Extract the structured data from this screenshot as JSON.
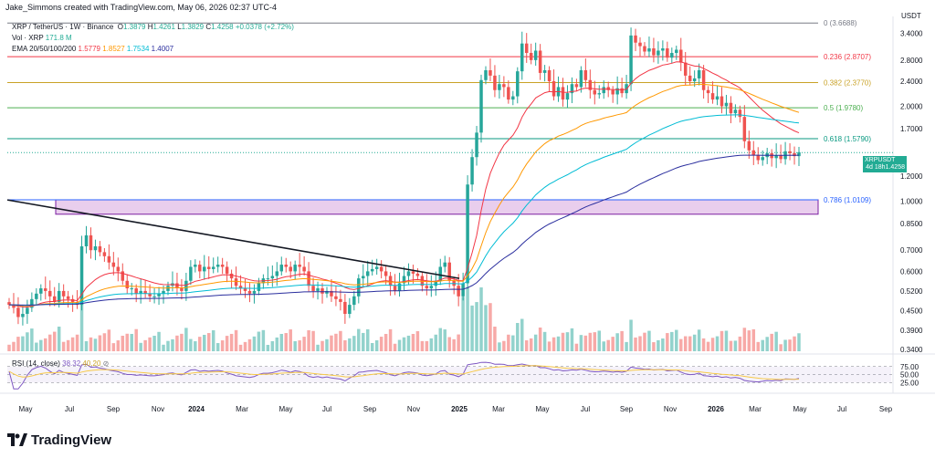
{
  "header": {
    "credit": "Jake_Simmons created with TradingView.com, May 06, 2026 02:37 UTC-4",
    "currency": "USDT"
  },
  "legend": {
    "symbol": "XRP / TetherUS · 1W · Binance",
    "o_label": "O",
    "o": "1.3879",
    "h_label": "H",
    "h": "1.4261",
    "l_label": "L",
    "l": "1.3829",
    "c_label": "C",
    "c": "1.4258",
    "change": "+0.0378 (+2.72%)",
    "vol_label": "Vol · XRP",
    "vol_value": "171.8 M",
    "ema_label": "EMA 20/50/100/200",
    "ema20": "1.5779",
    "ema50": "1.8527",
    "ema100": "1.7534",
    "ema200": "1.4007",
    "rsi_label": "RSI (14, close)",
    "rsi_value": "38.32",
    "rsi_ma": "40.20"
  },
  "colors": {
    "up": "#26a69a",
    "down": "#ef5350",
    "ema20": "#f23645",
    "ema50": "#ff9800",
    "ema100": "#00bcd4",
    "ema200": "#2a2e9e",
    "rsi": "#7e57c2",
    "rsi_ma": "#f7c948"
  },
  "fib_levels": [
    {
      "label": "0 (3.6688)",
      "color": "#787b86"
    },
    {
      "label": "0.236 (2.8707)",
      "color": "#f23645"
    },
    {
      "label": "0.382 (2.3770)",
      "color": "#c9a227"
    },
    {
      "label": "0.5 (1.9780)",
      "color": "#4caf50"
    },
    {
      "label": "0.618 (1.5790)",
      "color": "#089981"
    },
    {
      "label": "0.786 (1.0109)",
      "color": "#2962ff"
    }
  ],
  "price_tag": {
    "label": "XRPUSDT",
    "price": "1.4258",
    "countdown": "4d 18h"
  },
  "branding": {
    "logo_text": "TradingView"
  },
  "chart_data": [
    {
      "type": "candlestick",
      "title": "XRP / TetherUS · 1W · Binance",
      "y_scale": "log",
      "y_ticks": [
        "3.4000",
        "2.8000",
        "2.4000",
        "2.0000",
        "1.7000",
        "1.4258",
        "1.2000",
        "1.0000",
        "0.8500",
        "0.7000",
        "0.6000",
        "0.5200",
        "0.4500",
        "0.3900",
        "0.3400"
      ],
      "x_ticks": [
        "May",
        "Jul",
        "Sep",
        "Nov",
        "2024",
        "Mar",
        "May",
        "Jul",
        "Sep",
        "Nov",
        "2025",
        "Mar",
        "May",
        "Jul",
        "Sep",
        "Nov",
        "2026",
        "Mar",
        "May",
        "Jul",
        "Sep"
      ],
      "fibonacci_retracement": [
        {
          "ratio": 0,
          "price": 3.6688
        },
        {
          "ratio": 0.236,
          "price": 2.8707
        },
        {
          "ratio": 0.382,
          "price": 2.377
        },
        {
          "ratio": 0.5,
          "price": 1.978
        },
        {
          "ratio": 0.618,
          "price": 1.579
        },
        {
          "ratio": 0.786,
          "price": 1.0109
        }
      ],
      "support_zone": {
        "from": 0.91,
        "to": 1.0109
      },
      "trendline": {
        "from": [
          "2023-04",
          1.01
        ],
        "to": [
          "2024-12",
          0.57
        ]
      },
      "series_close_weekly": [
        0.47,
        0.46,
        0.43,
        0.44,
        0.46,
        0.49,
        0.51,
        0.53,
        0.52,
        0.5,
        0.48,
        0.52,
        0.5,
        0.49,
        0.48,
        0.47,
        0.72,
        0.78,
        0.7,
        0.72,
        0.69,
        0.67,
        0.64,
        0.62,
        0.6,
        0.56,
        0.53,
        0.53,
        0.51,
        0.52,
        0.51,
        0.5,
        0.5,
        0.51,
        0.52,
        0.54,
        0.55,
        0.53,
        0.52,
        0.56,
        0.62,
        0.63,
        0.6,
        0.62,
        0.61,
        0.62,
        0.63,
        0.62,
        0.59,
        0.57,
        0.54,
        0.53,
        0.52,
        0.51,
        0.52,
        0.55,
        0.57,
        0.57,
        0.58,
        0.6,
        0.63,
        0.62,
        0.6,
        0.63,
        0.62,
        0.6,
        0.54,
        0.52,
        0.53,
        0.51,
        0.52,
        0.5,
        0.49,
        0.48,
        0.44,
        0.47,
        0.5,
        0.57,
        0.58,
        0.6,
        0.61,
        0.62,
        0.6,
        0.58,
        0.54,
        0.52,
        0.55,
        0.58,
        0.6,
        0.59,
        0.58,
        0.54,
        0.53,
        0.54,
        0.56,
        0.62,
        0.64,
        0.56,
        0.54,
        0.5,
        0.55,
        1.13,
        1.38,
        1.65,
        2.42,
        2.6,
        2.5,
        2.25,
        2.35,
        2.3,
        2.1,
        2.15,
        2.58,
        3.16,
        2.95,
        2.8,
        3.0,
        2.55,
        2.6,
        2.4,
        2.15,
        2.3,
        2.1,
        2.2,
        2.35,
        2.3,
        2.6,
        2.42,
        2.25,
        2.18,
        2.2,
        2.3,
        2.25,
        2.18,
        2.28,
        2.2,
        2.35,
        3.35,
        3.18,
        3.1,
        2.98,
        3.05,
        2.9,
        3.0,
        3.05,
        2.85,
        2.95,
        3.02,
        2.75,
        2.5,
        2.4,
        2.45,
        2.6,
        2.25,
        2.2,
        2.1,
        2.15,
        2.0,
        2.05,
        1.9,
        1.95,
        1.85,
        1.55,
        1.45,
        1.4,
        1.35,
        1.38,
        1.42,
        1.37,
        1.4,
        1.36,
        1.44,
        1.42,
        1.39,
        1.43
      ],
      "series": [
        {
          "name": "EMA 20",
          "last": 1.5779
        },
        {
          "name": "EMA 50",
          "last": 1.8527
        },
        {
          "name": "EMA 100",
          "last": 1.7534
        },
        {
          "name": "EMA 200",
          "last": 1.4007
        }
      ]
    },
    {
      "type": "line",
      "title": "RSI (14, close)",
      "y_ticks": [
        "75.00",
        "50.00",
        "25.00"
      ],
      "ylim": [
        0,
        100
      ],
      "last": 38.32
    }
  ]
}
